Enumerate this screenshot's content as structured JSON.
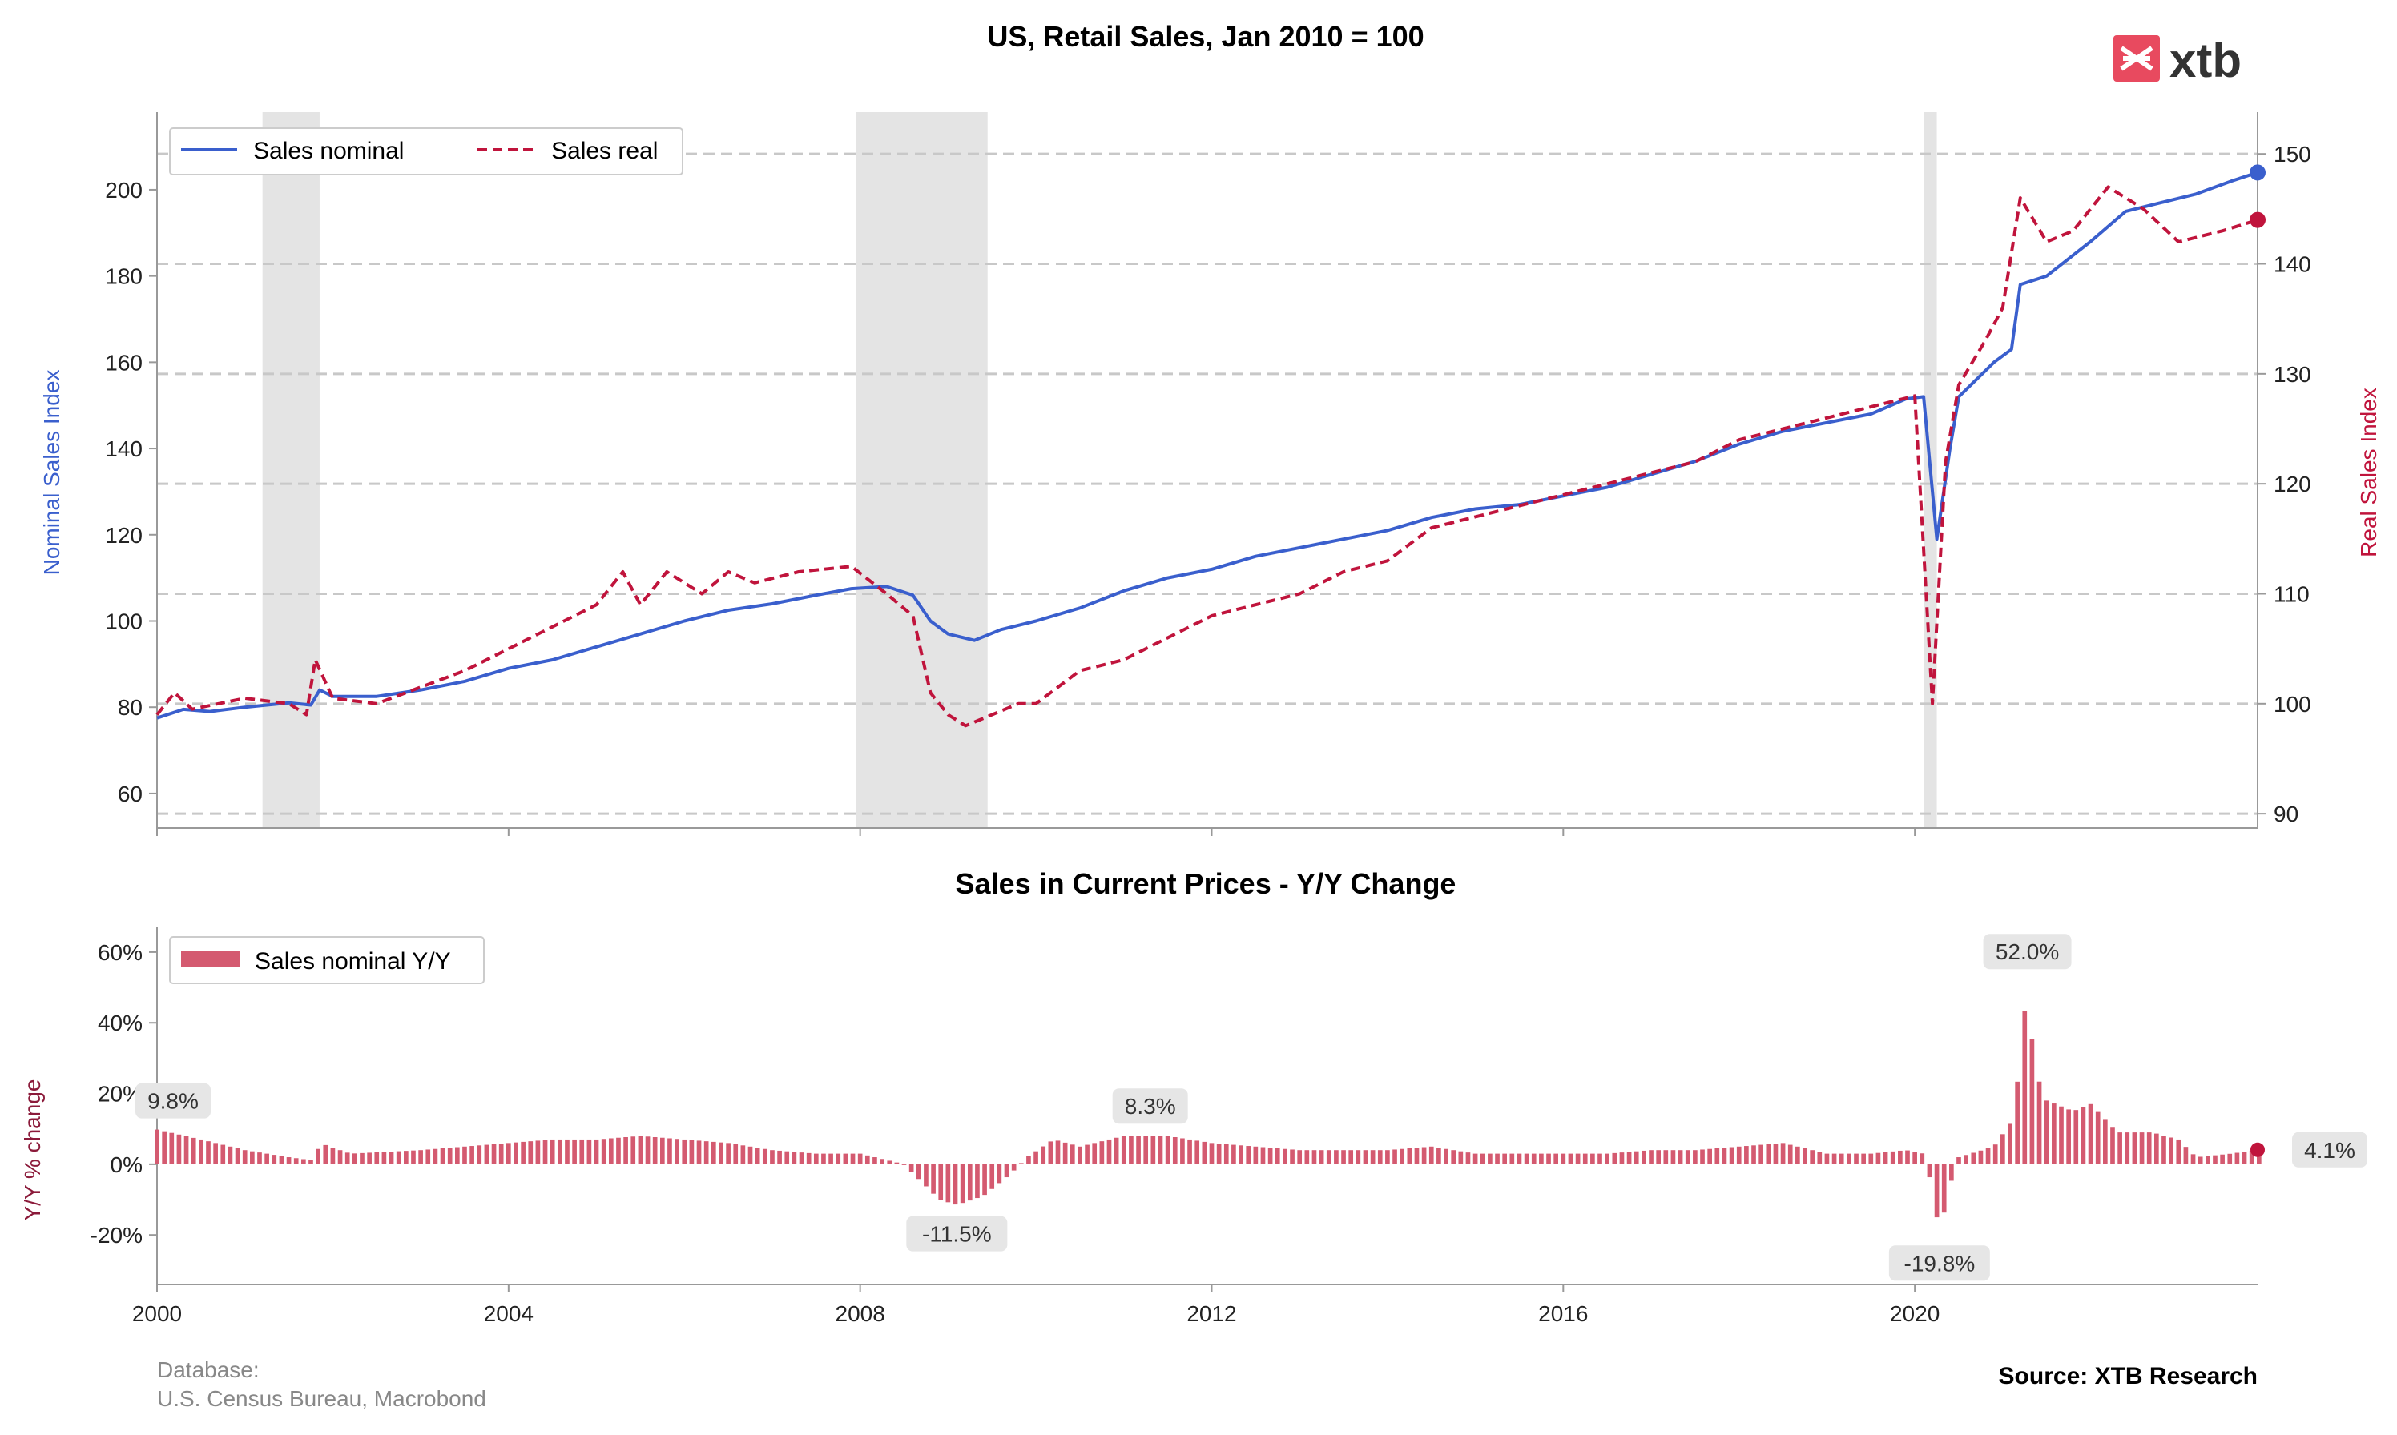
{
  "chart_data": [
    {
      "type": "line",
      "title": "US, Retail Sales, Jan 2010 = 100",
      "ylabel_left": "Nominal Sales Index",
      "ylabel_right": "Real Sales Index",
      "ylim_left": [
        52,
        218
      ],
      "ylim_right": [
        88.7,
        153.8
      ],
      "yticks_left": [
        60,
        80,
        100,
        120,
        140,
        160,
        180,
        200
      ],
      "yticks_right": [
        90,
        100,
        110,
        120,
        130,
        140,
        150
      ],
      "xlim": [
        2000,
        2023.9
      ],
      "xticks": [
        2000,
        2004,
        2008,
        2012,
        2016,
        2020
      ],
      "grid": "horizontal dashed at right-axis ticks",
      "legend": "top-left",
      "shaded_recessions": [
        [
          2001.2,
          2001.85
        ],
        [
          2007.95,
          2009.45
        ],
        [
          2020.1,
          2020.25
        ]
      ],
      "series": [
        {
          "name": "Sales nominal",
          "axis": "left",
          "color": "#3a5fcd",
          "style": "solid",
          "points": [
            [
              2000.0,
              77.5
            ],
            [
              2000.3,
              79.5
            ],
            [
              2000.6,
              79
            ],
            [
              2001.0,
              80
            ],
            [
              2001.5,
              81
            ],
            [
              2001.75,
              80.5
            ],
            [
              2001.85,
              84
            ],
            [
              2002.0,
              82.5
            ],
            [
              2002.5,
              82.5
            ],
            [
              2003.0,
              84
            ],
            [
              2003.5,
              86
            ],
            [
              2004.0,
              89
            ],
            [
              2004.5,
              91
            ],
            [
              2005.0,
              94
            ],
            [
              2005.5,
              97
            ],
            [
              2006.0,
              100
            ],
            [
              2006.5,
              102.5
            ],
            [
              2007.0,
              104
            ],
            [
              2007.5,
              106
            ],
            [
              2007.9,
              107.5
            ],
            [
              2008.3,
              108
            ],
            [
              2008.6,
              106
            ],
            [
              2008.8,
              100
            ],
            [
              2009.0,
              97
            ],
            [
              2009.3,
              95.5
            ],
            [
              2009.6,
              98
            ],
            [
              2010.0,
              100
            ],
            [
              2010.5,
              103
            ],
            [
              2011.0,
              107
            ],
            [
              2011.5,
              110
            ],
            [
              2012.0,
              112
            ],
            [
              2012.5,
              115
            ],
            [
              2013.0,
              117
            ],
            [
              2013.5,
              119
            ],
            [
              2014.0,
              121
            ],
            [
              2014.5,
              124
            ],
            [
              2015.0,
              126
            ],
            [
              2015.5,
              127
            ],
            [
              2016.0,
              129
            ],
            [
              2016.5,
              131
            ],
            [
              2017.0,
              134
            ],
            [
              2017.5,
              137
            ],
            [
              2018.0,
              141
            ],
            [
              2018.5,
              144
            ],
            [
              2019.0,
              146
            ],
            [
              2019.5,
              148
            ],
            [
              2019.9,
              151.5
            ],
            [
              2020.1,
              152
            ],
            [
              2020.25,
              119
            ],
            [
              2020.4,
              140
            ],
            [
              2020.5,
              152
            ],
            [
              2020.9,
              160
            ],
            [
              2021.1,
              163
            ],
            [
              2021.2,
              178
            ],
            [
              2021.5,
              180
            ],
            [
              2022.0,
              188
            ],
            [
              2022.4,
              195
            ],
            [
              2022.8,
              197
            ],
            [
              2023.2,
              199
            ],
            [
              2023.6,
              202
            ],
            [
              2023.9,
              204
            ]
          ]
        },
        {
          "name": "Sales real",
          "axis": "right",
          "color": "#c0143c",
          "style": "dashed",
          "points": [
            [
              2000.0,
              99
            ],
            [
              2000.2,
              101
            ],
            [
              2000.4,
              99.5
            ],
            [
              2000.7,
              100
            ],
            [
              2001.0,
              100.5
            ],
            [
              2001.5,
              100
            ],
            [
              2001.7,
              99
            ],
            [
              2001.8,
              104
            ],
            [
              2002.0,
              100.5
            ],
            [
              2002.5,
              100
            ],
            [
              2003.0,
              101.5
            ],
            [
              2003.5,
              103
            ],
            [
              2004.0,
              105
            ],
            [
              2004.5,
              107
            ],
            [
              2005.0,
              109
            ],
            [
              2005.3,
              112
            ],
            [
              2005.5,
              109
            ],
            [
              2005.8,
              112
            ],
            [
              2006.2,
              110
            ],
            [
              2006.5,
              112
            ],
            [
              2006.8,
              111
            ],
            [
              2007.3,
              112
            ],
            [
              2007.9,
              112.5
            ],
            [
              2008.3,
              110
            ],
            [
              2008.6,
              108
            ],
            [
              2008.8,
              101
            ],
            [
              2009.0,
              99
            ],
            [
              2009.2,
              98
            ],
            [
              2009.5,
              99
            ],
            [
              2009.8,
              100
            ],
            [
              2010.0,
              100
            ],
            [
              2010.5,
              103
            ],
            [
              2011.0,
              104
            ],
            [
              2011.5,
              106
            ],
            [
              2012.0,
              108
            ],
            [
              2012.5,
              109
            ],
            [
              2013.0,
              110
            ],
            [
              2013.5,
              112
            ],
            [
              2014.0,
              113
            ],
            [
              2014.5,
              116
            ],
            [
              2015.0,
              117
            ],
            [
              2015.5,
              118
            ],
            [
              2016.0,
              119
            ],
            [
              2016.5,
              120
            ],
            [
              2017.0,
              121
            ],
            [
              2017.5,
              122
            ],
            [
              2018.0,
              124
            ],
            [
              2018.5,
              125
            ],
            [
              2019.0,
              126
            ],
            [
              2019.5,
              127
            ],
            [
              2020.0,
              128
            ],
            [
              2020.2,
              100
            ],
            [
              2020.35,
              122
            ],
            [
              2020.5,
              129
            ],
            [
              2020.8,
              133
            ],
            [
              2021.0,
              136
            ],
            [
              2021.2,
              146
            ],
            [
              2021.5,
              142
            ],
            [
              2021.8,
              143
            ],
            [
              2022.2,
              147
            ],
            [
              2022.6,
              145
            ],
            [
              2023.0,
              142
            ],
            [
              2023.5,
              143
            ],
            [
              2023.9,
              144
            ]
          ]
        }
      ]
    },
    {
      "type": "bar",
      "title": "Sales in Current Prices - Y/Y Change",
      "ylabel": "Y/Y % change",
      "ylim": [
        -34,
        67
      ],
      "yticks": [
        -20,
        0,
        20,
        40,
        60
      ],
      "ytick_labels": [
        "-20%",
        "0%",
        "20%",
        "40%",
        "60%"
      ],
      "xlim": [
        2000,
        2023.9
      ],
      "xticks": [
        2000,
        2004,
        2008,
        2012,
        2016,
        2020
      ],
      "legend": "top-left",
      "series": [
        {
          "name": "Sales nominal Y/Y",
          "color": "#d45a70",
          "knots": [
            [
              2000.0,
              9.8
            ],
            [
              2000.5,
              7
            ],
            [
              2001.0,
              4
            ],
            [
              2001.5,
              2
            ],
            [
              2001.8,
              1
            ],
            [
              2001.85,
              6
            ],
            [
              2002.2,
              3
            ],
            [
              2003.0,
              4
            ],
            [
              2003.5,
              5
            ],
            [
              2004.0,
              6
            ],
            [
              2004.5,
              7
            ],
            [
              2005.0,
              7
            ],
            [
              2005.5,
              8
            ],
            [
              2006.0,
              7
            ],
            [
              2006.5,
              6
            ],
            [
              2007.0,
              4
            ],
            [
              2007.5,
              3
            ],
            [
              2008.0,
              3
            ],
            [
              2008.5,
              0
            ],
            [
              2008.7,
              -5
            ],
            [
              2008.9,
              -10
            ],
            [
              2009.1,
              -11.5
            ],
            [
              2009.4,
              -9
            ],
            [
              2009.7,
              -3
            ],
            [
              2009.9,
              2
            ],
            [
              2010.2,
              7
            ],
            [
              2010.5,
              5
            ],
            [
              2011.0,
              8
            ],
            [
              2011.5,
              8
            ],
            [
              2012.0,
              6
            ],
            [
              2012.5,
              5
            ],
            [
              2013.0,
              4
            ],
            [
              2013.5,
              4
            ],
            [
              2014.0,
              4
            ],
            [
              2014.5,
              5
            ],
            [
              2015.0,
              3
            ],
            [
              2015.5,
              3
            ],
            [
              2016.0,
              3
            ],
            [
              2016.5,
              3
            ],
            [
              2017.0,
              4
            ],
            [
              2017.5,
              4
            ],
            [
              2018.0,
              5
            ],
            [
              2018.5,
              6
            ],
            [
              2019.0,
              3
            ],
            [
              2019.5,
              3
            ],
            [
              2019.9,
              4
            ],
            [
              2020.1,
              3
            ],
            [
              2020.2,
              -7
            ],
            [
              2020.28,
              -19.8
            ],
            [
              2020.4,
              -6
            ],
            [
              2020.5,
              2
            ],
            [
              2020.9,
              5
            ],
            [
              2021.1,
              12
            ],
            [
              2021.2,
              29
            ],
            [
              2021.28,
              52
            ],
            [
              2021.36,
              27
            ],
            [
              2021.5,
              18
            ],
            [
              2021.8,
              15
            ],
            [
              2022.0,
              17
            ],
            [
              2022.3,
              9
            ],
            [
              2022.7,
              9
            ],
            [
              2023.0,
              7
            ],
            [
              2023.2,
              2
            ],
            [
              2023.6,
              3
            ],
            [
              2023.9,
              4.1
            ]
          ]
        }
      ],
      "annotations": [
        {
          "x": 2000.0,
          "y": 9.8,
          "text": "9.8%"
        },
        {
          "x": 2009.1,
          "y": -11.5,
          "text": "-11.5%"
        },
        {
          "x": 2011.3,
          "y": 8.3,
          "text": "8.3%"
        },
        {
          "x": 2021.28,
          "y": 52,
          "text": "52.0%"
        },
        {
          "x": 2020.28,
          "y": -19.8,
          "text": "-19.8%"
        },
        {
          "x": 2023.9,
          "y": 4.1,
          "text": "4.1%"
        }
      ]
    }
  ],
  "footer": {
    "database_label": "Database:",
    "database_value": "U.S. Census Bureau, Macrobond",
    "source": "Source: XTB Research"
  },
  "logo": {
    "text": "xtb",
    "color": "#e84a5f"
  }
}
